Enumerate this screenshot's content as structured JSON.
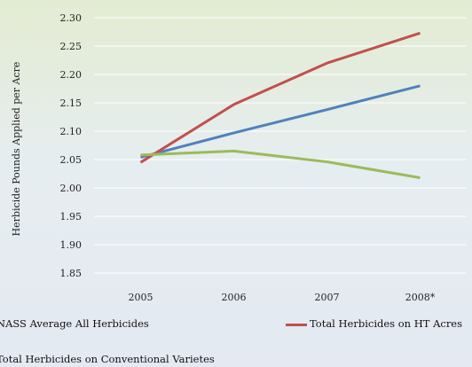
{
  "chart_data": {
    "type": "line",
    "title": "",
    "xlabel": "",
    "ylabel": "Herbicide Pounds Applied per Acre",
    "categories": [
      "2005",
      "2006",
      "2007",
      "2008*"
    ],
    "ylim": [
      1.85,
      2.3
    ],
    "yticks": [
      "1.85",
      "1.90",
      "1.95",
      "2.00",
      "2.05",
      "2.10",
      "2.15",
      "2.20",
      "2.25",
      "2.30"
    ],
    "grid": true,
    "series": [
      {
        "name": "NASS Average All Herbicides",
        "color": "#4f81bd",
        "values": [
          2.054,
          2.097,
          2.138,
          2.18
        ]
      },
      {
        "name": "Total Herbicides on HT Acres",
        "color": "#c0504d",
        "values": [
          2.045,
          2.147,
          2.22,
          2.273
        ]
      },
      {
        "name": "Total Herbicides on Conventional Varietes",
        "color": "#9bbb59",
        "values": [
          2.058,
          2.065,
          2.046,
          2.018
        ]
      }
    ]
  }
}
